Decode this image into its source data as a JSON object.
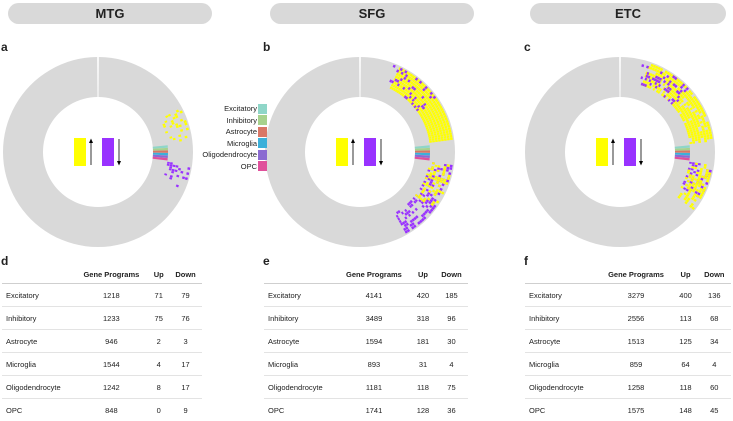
{
  "colors": {
    "ring": "#d9d9d9",
    "up": "#ffff00",
    "down": "#9932ff",
    "Excitatory": "#8fd6c8",
    "Inhibitory": "#a7d28d",
    "Astrocyte": "#d97766",
    "Microglia": "#3bb0d9",
    "Oligodendrocyte": "#8b6bd1",
    "OPC": "#e0509b"
  },
  "legend": [
    "Excitatory",
    "Inhibitory",
    "Astrocyte",
    "Microglia",
    "Oligodendrocyte",
    "OPC"
  ],
  "regions": [
    {
      "name": "MTG",
      "letter_circle": "a",
      "letter_table": "d",
      "marks": "low"
    },
    {
      "name": "SFG",
      "letter_circle": "b",
      "letter_table": "e",
      "marks": "high"
    },
    {
      "name": "ETC",
      "letter_circle": "c",
      "letter_table": "f",
      "marks": "mid"
    }
  ],
  "table_headers": {
    "cell_type": "",
    "gene_programs": "Gene Programs",
    "up": "Up",
    "down": "Down"
  },
  "tables": [
    {
      "rows": [
        {
          "cell": "Excitatory",
          "gp": "1218",
          "up": "71",
          "down": "79"
        },
        {
          "cell": "Inhibitory",
          "gp": "1233",
          "up": "75",
          "down": "76"
        },
        {
          "cell": "Astrocyte",
          "gp": "946",
          "up": "2",
          "down": "3"
        },
        {
          "cell": "Microglia",
          "gp": "1544",
          "up": "4",
          "down": "17"
        },
        {
          "cell": "Oligodendrocyte",
          "gp": "1242",
          "up": "8",
          "down": "17"
        },
        {
          "cell": "OPC",
          "gp": "848",
          "up": "0",
          "down": "9"
        }
      ]
    },
    {
      "rows": [
        {
          "cell": "Excitatory",
          "gp": "4141",
          "up": "420",
          "down": "185"
        },
        {
          "cell": "Inhibitory",
          "gp": "3489",
          "up": "318",
          "down": "96"
        },
        {
          "cell": "Astrocyte",
          "gp": "1594",
          "up": "181",
          "down": "30"
        },
        {
          "cell": "Microglia",
          "gp": "893",
          "up": "31",
          "down": "4"
        },
        {
          "cell": "Oligodendrocyte",
          "gp": "1181",
          "up": "118",
          "down": "75"
        },
        {
          "cell": "OPC",
          "gp": "1741",
          "up": "128",
          "down": "36"
        }
      ]
    },
    {
      "rows": [
        {
          "cell": "Excitatory",
          "gp": "3279",
          "up": "400",
          "down": "136"
        },
        {
          "cell": "Inhibitory",
          "gp": "2556",
          "up": "113",
          "down": "68"
        },
        {
          "cell": "Astrocyte",
          "gp": "1513",
          "up": "125",
          "down": "34"
        },
        {
          "cell": "Microglia",
          "gp": "859",
          "up": "64",
          "down": "4"
        },
        {
          "cell": "Oligodendrocyte",
          "gp": "1258",
          "up": "118",
          "down": "60"
        },
        {
          "cell": "OPC",
          "gp": "1575",
          "up": "148",
          "down": "45"
        }
      ]
    }
  ]
}
